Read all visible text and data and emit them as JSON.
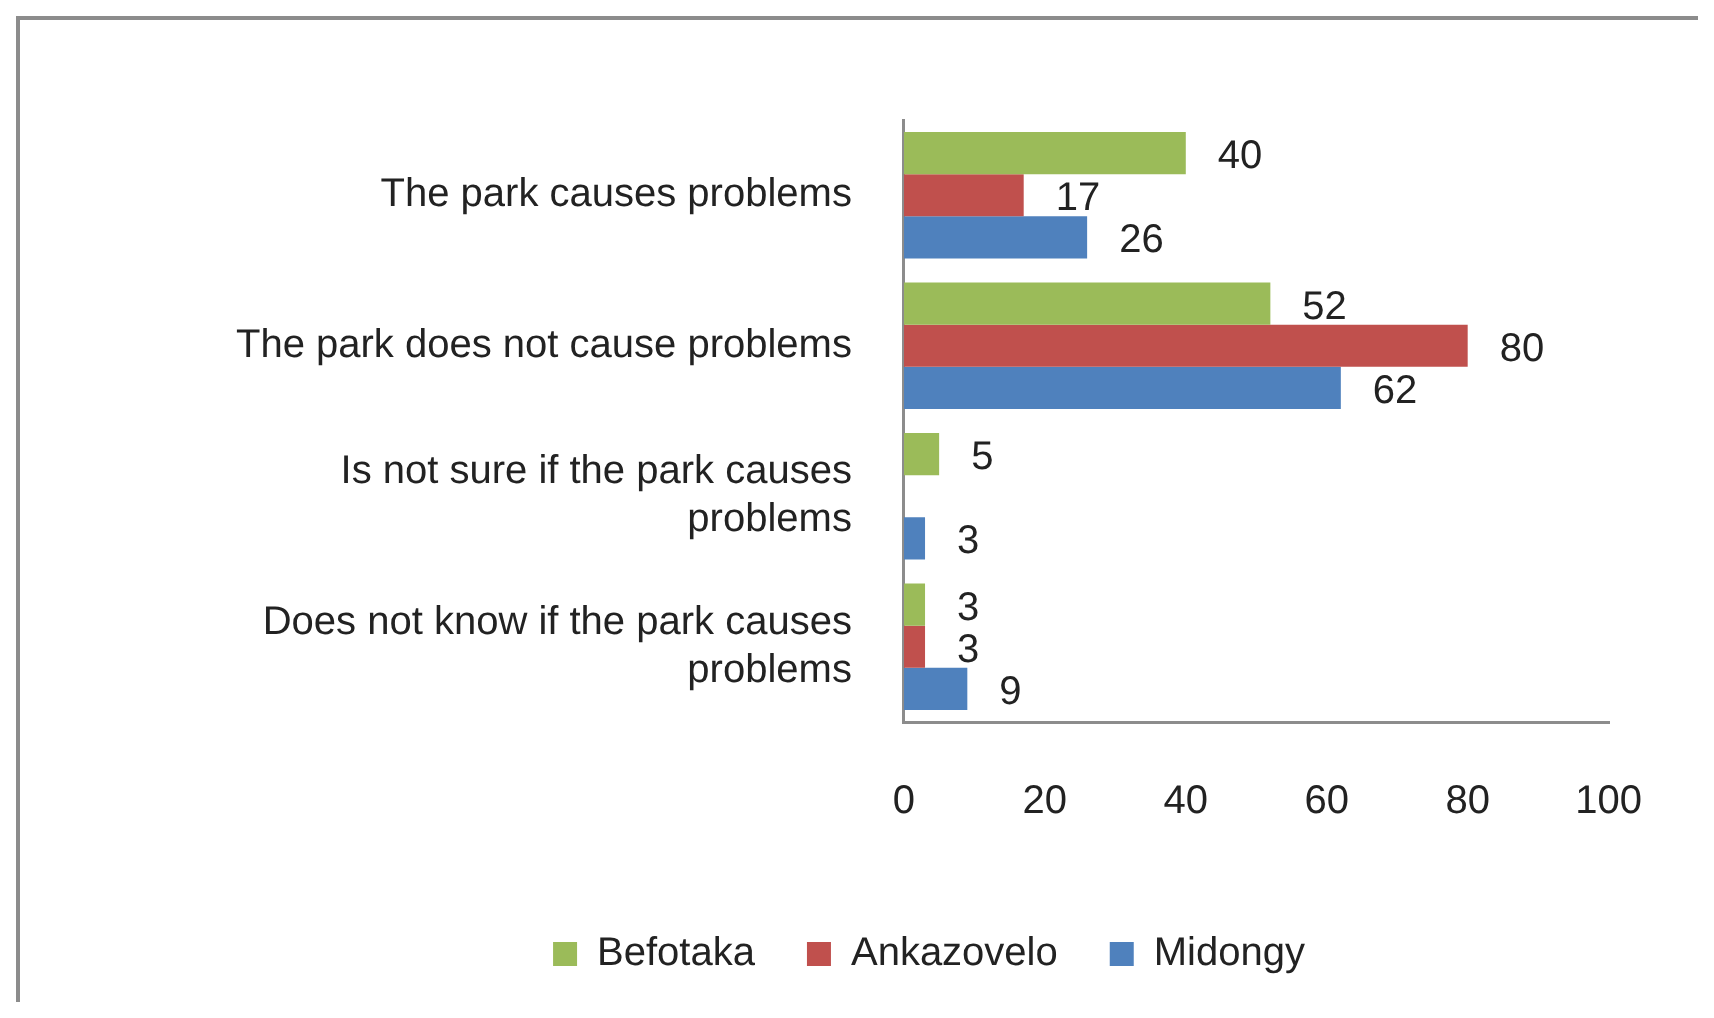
{
  "chart_data": {
    "type": "bar",
    "orientation": "horizontal",
    "categories": [
      "The park causes problems",
      "The park does not cause problems",
      "Is not sure if the park causes problems",
      "Does not know if the park causes problems"
    ],
    "series": [
      {
        "name": "Befotaka",
        "color": "#9bbb59",
        "values": [
          40,
          52,
          5,
          3
        ]
      },
      {
        "name": "Ankazovelo",
        "color": "#c0504d",
        "values": [
          17,
          80,
          null,
          3
        ]
      },
      {
        "name": "Midongy",
        "color": "#4f81bd",
        "values": [
          26,
          62,
          3,
          9
        ]
      }
    ],
    "xlim": [
      0,
      100
    ],
    "xticks": [
      0,
      20,
      40,
      60,
      80,
      100
    ],
    "data_labels": true,
    "legend": "bottom"
  }
}
